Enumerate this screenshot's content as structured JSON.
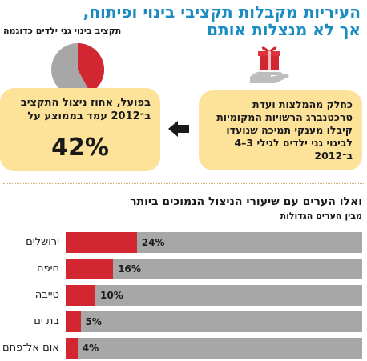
{
  "header": {
    "title_line1": "העיריות מקבלות תקציבי בינוי ופיתוח,",
    "title_line2": "אך לא מנצלות אותם",
    "subtitle": "תקציב בינוי גני ילדים כדוגמה"
  },
  "info_right": {
    "text": "כחלק מהמלצות ועדת טרכטנברג הרשויות המקומיות קיבלו מענקי תמיכה שנועדו לבינוי גני ילדים לגילי 3–4 ב־2012"
  },
  "info_left": {
    "text": "בפועל, אחוז ניצול התקציב ב־2012 עמד בממוצע על",
    "percent_label": "42%",
    "percent_value": 42
  },
  "colors": {
    "title": "#1b8cc2",
    "box": "#fde29a",
    "bar_fill": "#d22631",
    "bar_track": "#a7a7a7"
  },
  "icons": {
    "pie": "pie-chart-icon",
    "gift": "gift-in-hand-icon",
    "arrow": "arrow-left-icon"
  },
  "chart_data": {
    "type": "bar",
    "orientation": "horizontal",
    "title": "ואלו הערים עם שיעורי הניצול הנמוכים ביותר",
    "subtitle": "מבין הערים הגדולות",
    "categories": [
      "ירושלים",
      "חיפה",
      "טייבה",
      "בת ים",
      "אום אל־פחם"
    ],
    "values": [
      24,
      16,
      10,
      5,
      4
    ],
    "labels": [
      "24%",
      "16%",
      "10%",
      "5%",
      "4%"
    ],
    "unit": "%",
    "xlim": [
      0,
      100
    ],
    "grid": false,
    "legend": "none"
  }
}
